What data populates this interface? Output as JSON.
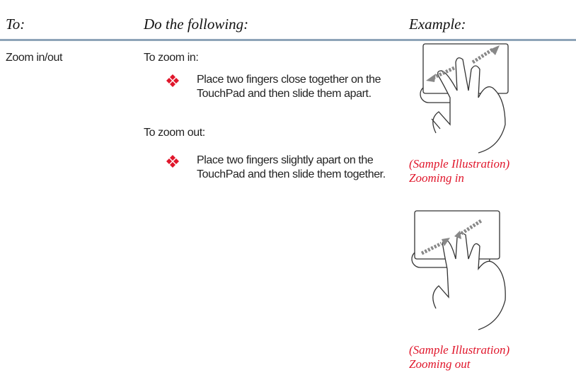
{
  "table": {
    "header": [
      "To:",
      "Do the following:",
      "Example:"
    ],
    "rows": [
      {
        "action": "Zoom in/out",
        "steps": [
          {
            "heading": "To zoom in:",
            "bullet": "Place two fingers close together on the TouchPad and then slide them apart."
          },
          {
            "heading": "To zoom out:",
            "bullet": "Place two fingers slightly apart on the TouchPad and then slide them together."
          }
        ],
        "examples": [
          {
            "caption": "(Sample Illustration)",
            "label": "Zooming in"
          },
          {
            "caption": "(Sample Illustration)",
            "label": "Zooming out"
          }
        ]
      }
    ]
  }
}
